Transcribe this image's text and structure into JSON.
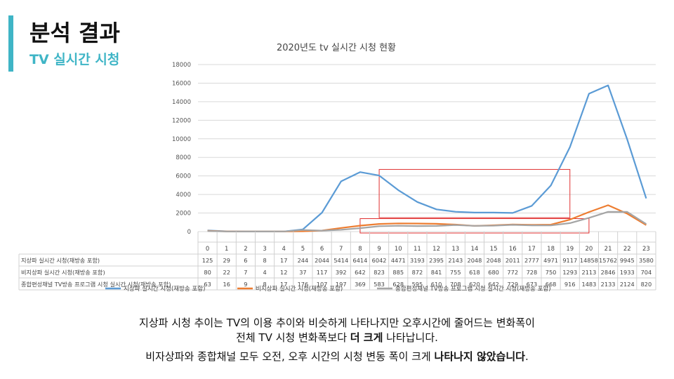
{
  "slide": {
    "title": "분석 결과",
    "subtitle": "TV 실시간 시청",
    "accent_color": "#3fb5c6"
  },
  "chart_data": {
    "type": "line",
    "title": "2020년도 tv 실시간 시청 현황",
    "x": [
      "0",
      "1",
      "2",
      "3",
      "4",
      "5",
      "6",
      "7",
      "8",
      "9",
      "10",
      "11",
      "12",
      "13",
      "14",
      "15",
      "16",
      "17",
      "18",
      "19",
      "20",
      "21",
      "22",
      "23"
    ],
    "ylim": [
      0,
      18000
    ],
    "yticks": [
      "0",
      "2000",
      "4000",
      "6000",
      "8000",
      "10000",
      "12000",
      "14000",
      "16000",
      "18000"
    ],
    "grid": true,
    "legend": "bottom",
    "data_table": true,
    "series": [
      {
        "name": "지상파 실시간 시청(재방송 포함)",
        "color": "#5b9bd5",
        "values": [
          125,
          29,
          6,
          8,
          17,
          244,
          2044,
          5414,
          6414,
          6042,
          4471,
          3193,
          2395,
          2143,
          2048,
          2048,
          2011,
          2777,
          4971,
          9117,
          14858,
          15762,
          9945,
          3580
        ]
      },
      {
        "name": "비지상파  실시간 시청(재방송 포함)",
        "color": "#ed7d31",
        "values": [
          80,
          22,
          7,
          4,
          12,
          37,
          117,
          392,
          642,
          823,
          885,
          872,
          841,
          755,
          618,
          680,
          772,
          728,
          750,
          1293,
          2113,
          2846,
          1933,
          704
        ]
      },
      {
        "name": "종합편성채널 TV방송 프로그램 시청 실시간 시청(재방송 포함)",
        "color": "#a5a5a5",
        "values": [
          63,
          16,
          9,
          8,
          17,
          176,
          107,
          197,
          369,
          583,
          628,
          595,
          610,
          708,
          620,
          642,
          729,
          673,
          668,
          916,
          1483,
          2133,
          2124,
          820
        ]
      }
    ],
    "legend_labels": [
      "지상파 실시간 시청(재방송 포함)",
      "비지상파  실시간 시청(재방송 포함)",
      "종합편성채널 TV방송 프로그램 시청 실시간 시청(재방송 포함)"
    ],
    "highlight_boxes": [
      {
        "x_from": 9,
        "x_to": 19,
        "y_from": 1500,
        "y_to": 6700,
        "color": "#e03030"
      },
      {
        "x_from": 8,
        "x_to": 20,
        "y_from": 0,
        "y_to": 1400,
        "color": "#e03030"
      }
    ]
  },
  "caption": {
    "line1": "지상파 시청 추이는 TV의 이용 추이와 비슷하게 나타나지만 오후시간에 줄어드는 변화폭이",
    "line2_prefix": "전체 TV 시청 변화폭보다 ",
    "line2_bold": "더 크게",
    "line2_suffix": " 나타납니다.",
    "line3_prefix": "비자상파와 종합채널 모두 오전, 오후 시간의 시청 변동 폭이 크게 ",
    "line3_bold": "나타나지 않았습니다",
    "line3_suffix": "."
  }
}
